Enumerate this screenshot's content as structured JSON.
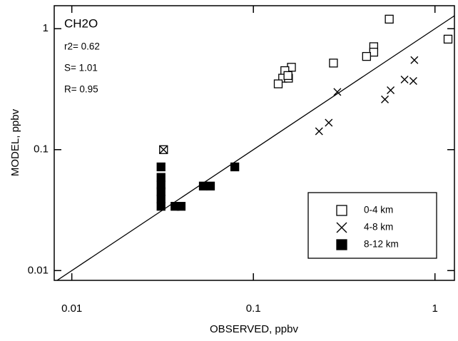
{
  "chart_data": {
    "type": "scatter",
    "x_label": "OBSERVED, ppbv",
    "y_label": "MODEL, ppbv",
    "annotations": [
      "CH2O",
      "r2= 0.62",
      "S= 1.01",
      "R= 0.95"
    ],
    "xscale": "log",
    "yscale": "log",
    "xlim": [
      0.008,
      1.28
    ],
    "ylim": [
      0.0083,
      1.55
    ],
    "xticks": [
      0.01,
      0.1,
      1
    ],
    "yticks": [
      0.01,
      0.1,
      1
    ],
    "identity_line": true,
    "legend_position": "lower right",
    "series": [
      {
        "name": "0-4 km",
        "marker": "open-square",
        "color": "#000000",
        "x": [
          0.56,
          1.18,
          0.46,
          0.46,
          0.42,
          0.276,
          0.162,
          0.149,
          0.145,
          0.156,
          0.137,
          0.155,
          0.032
        ],
        "values": [
          1.2,
          0.82,
          0.71,
          0.64,
          0.59,
          0.52,
          0.48,
          0.45,
          0.39,
          0.39,
          0.35,
          0.41,
          0.1
        ]
      },
      {
        "name": "4-8 km",
        "marker": "cross",
        "color": "#000000",
        "x": [
          0.77,
          0.68,
          0.76,
          0.57,
          0.53,
          0.29,
          0.26,
          0.23,
          0.032
        ],
        "values": [
          0.55,
          0.38,
          0.37,
          0.31,
          0.26,
          0.3,
          0.167,
          0.142,
          0.1
        ]
      },
      {
        "name": "8-12 km",
        "marker": "filled-square",
        "color": "#000000",
        "x": [
          0.031,
          0.031,
          0.031,
          0.031,
          0.031,
          0.031,
          0.037,
          0.04,
          0.053,
          0.058,
          0.079
        ],
        "values": [
          0.072,
          0.059,
          0.051,
          0.045,
          0.039,
          0.034,
          0.034,
          0.034,
          0.05,
          0.05,
          0.072
        ]
      }
    ]
  }
}
